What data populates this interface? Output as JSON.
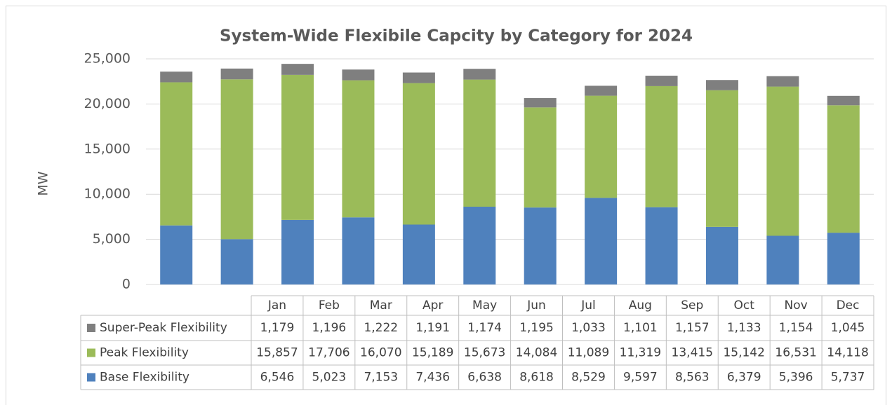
{
  "chart_data": {
    "type": "bar",
    "stacked": true,
    "title": "System-Wide Flexibile Capcity by Category for 2024",
    "y_label": "MW",
    "categories": [
      "Jan",
      "Feb",
      "Mar",
      "Apr",
      "May",
      "Jun",
      "Jul",
      "Aug",
      "Sep",
      "Oct",
      "Nov",
      "Dec"
    ],
    "series": [
      {
        "name": "Base Flexibility",
        "color": "#4f81bd",
        "values": [
          6546,
          5023,
          7153,
          7436,
          6638,
          8618,
          8529,
          9597,
          8563,
          6379,
          5396,
          5737
        ],
        "value_labels": [
          "6,546",
          "5,023",
          "7,153",
          "7,436",
          "6,638",
          "8,618",
          "8,529",
          "9,597",
          "8,563",
          "6,379",
          "5,396",
          "5,737"
        ]
      },
      {
        "name": "Peak Flexibility",
        "color": "#9bbb59",
        "values": [
          15857,
          17706,
          16070,
          15189,
          15673,
          14084,
          11089,
          11319,
          13415,
          15142,
          16531,
          14118
        ],
        "value_labels": [
          "15,857",
          "17,706",
          "16,070",
          "15,189",
          "15,673",
          "14,084",
          "11,089",
          "11,319",
          "13,415",
          "15,142",
          "16,531",
          "14,118"
        ]
      },
      {
        "name": "Super-Peak Flexibility",
        "color": "#7f7f7f",
        "values": [
          1179,
          1196,
          1222,
          1191,
          1174,
          1195,
          1033,
          1101,
          1157,
          1133,
          1154,
          1045
        ],
        "value_labels": [
          "1,179",
          "1,196",
          "1,222",
          "1,191",
          "1,174",
          "1,195",
          "1,033",
          "1,101",
          "1,157",
          "1,133",
          "1,154",
          "1,045"
        ]
      }
    ],
    "ylim": [
      0,
      25000
    ],
    "yticks": [
      0,
      {
        "value": 5000,
        "label": "5,000"
      },
      {
        "value": 10000,
        "label": "10,000"
      },
      {
        "value": 15000,
        "label": "15,000"
      },
      {
        "value": 20000,
        "label": "20,000"
      },
      {
        "value": 25000,
        "label": "25,000"
      }
    ],
    "grid": true
  }
}
